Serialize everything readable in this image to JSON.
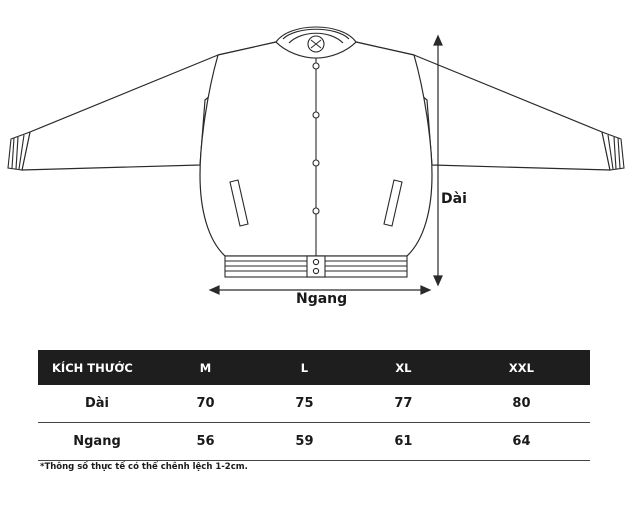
{
  "diagram": {
    "length_label": "Dài",
    "width_label": "Ngang"
  },
  "table": {
    "header_label": "KÍCH THƯỚC",
    "sizes": [
      "M",
      "L",
      "XL",
      "XXL"
    ],
    "rows": [
      {
        "label": "Dài",
        "values": [
          "70",
          "75",
          "77",
          "80"
        ]
      },
      {
        "label": "Ngang",
        "values": [
          "56",
          "59",
          "61",
          "64"
        ]
      }
    ]
  },
  "footnote": "*Thông số thực tế có thể chênh lệch 1-2cm."
}
